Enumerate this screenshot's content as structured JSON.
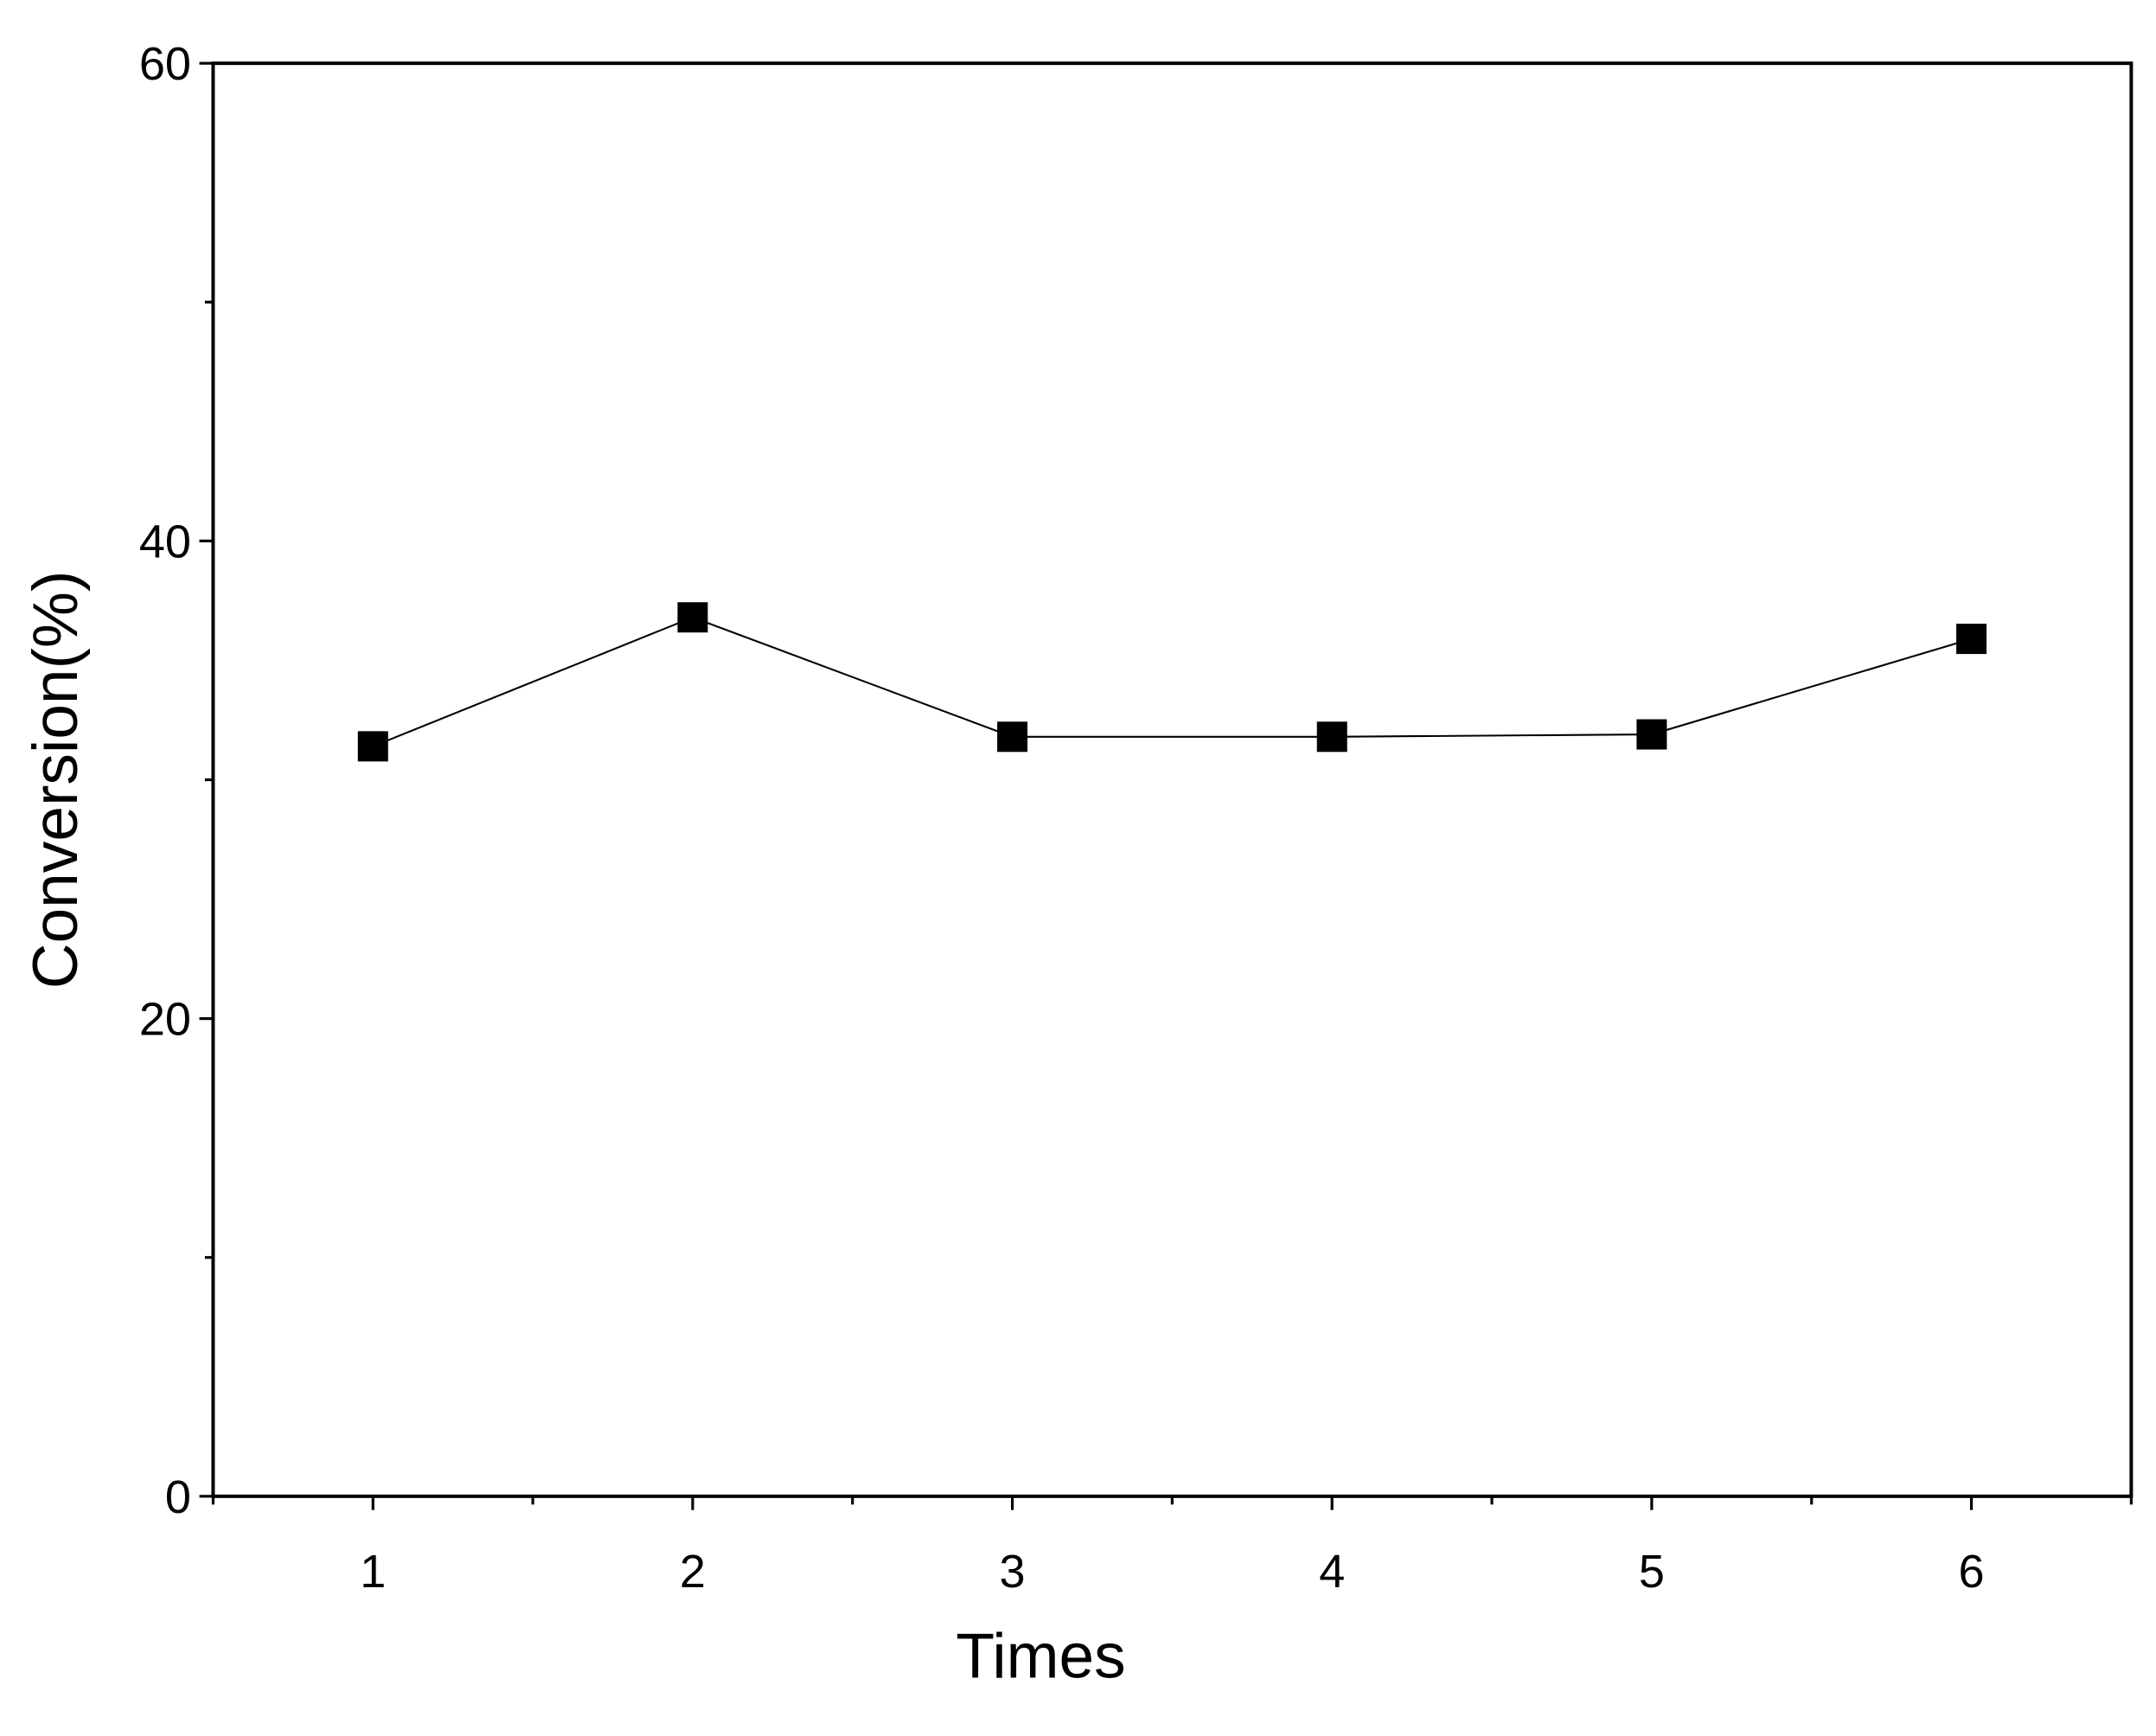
{
  "chart_data": {
    "type": "line",
    "x_label": "Times",
    "y_label": "Conversion(%)",
    "x": [
      1,
      2,
      3,
      4,
      5,
      6
    ],
    "series": [
      {
        "color": "#000000",
        "marker": "square",
        "values": [
          31.4,
          36.8,
          31.8,
          31.8,
          31.9,
          35.9
        ]
      }
    ],
    "xlim": [
      0.5,
      6.5
    ],
    "xticks": [
      1,
      2,
      3,
      4,
      5,
      6
    ],
    "ylim": [
      0,
      60
    ],
    "yticks": [
      0,
      20,
      40,
      60
    ],
    "minor_ticks": true,
    "grid": false
  }
}
